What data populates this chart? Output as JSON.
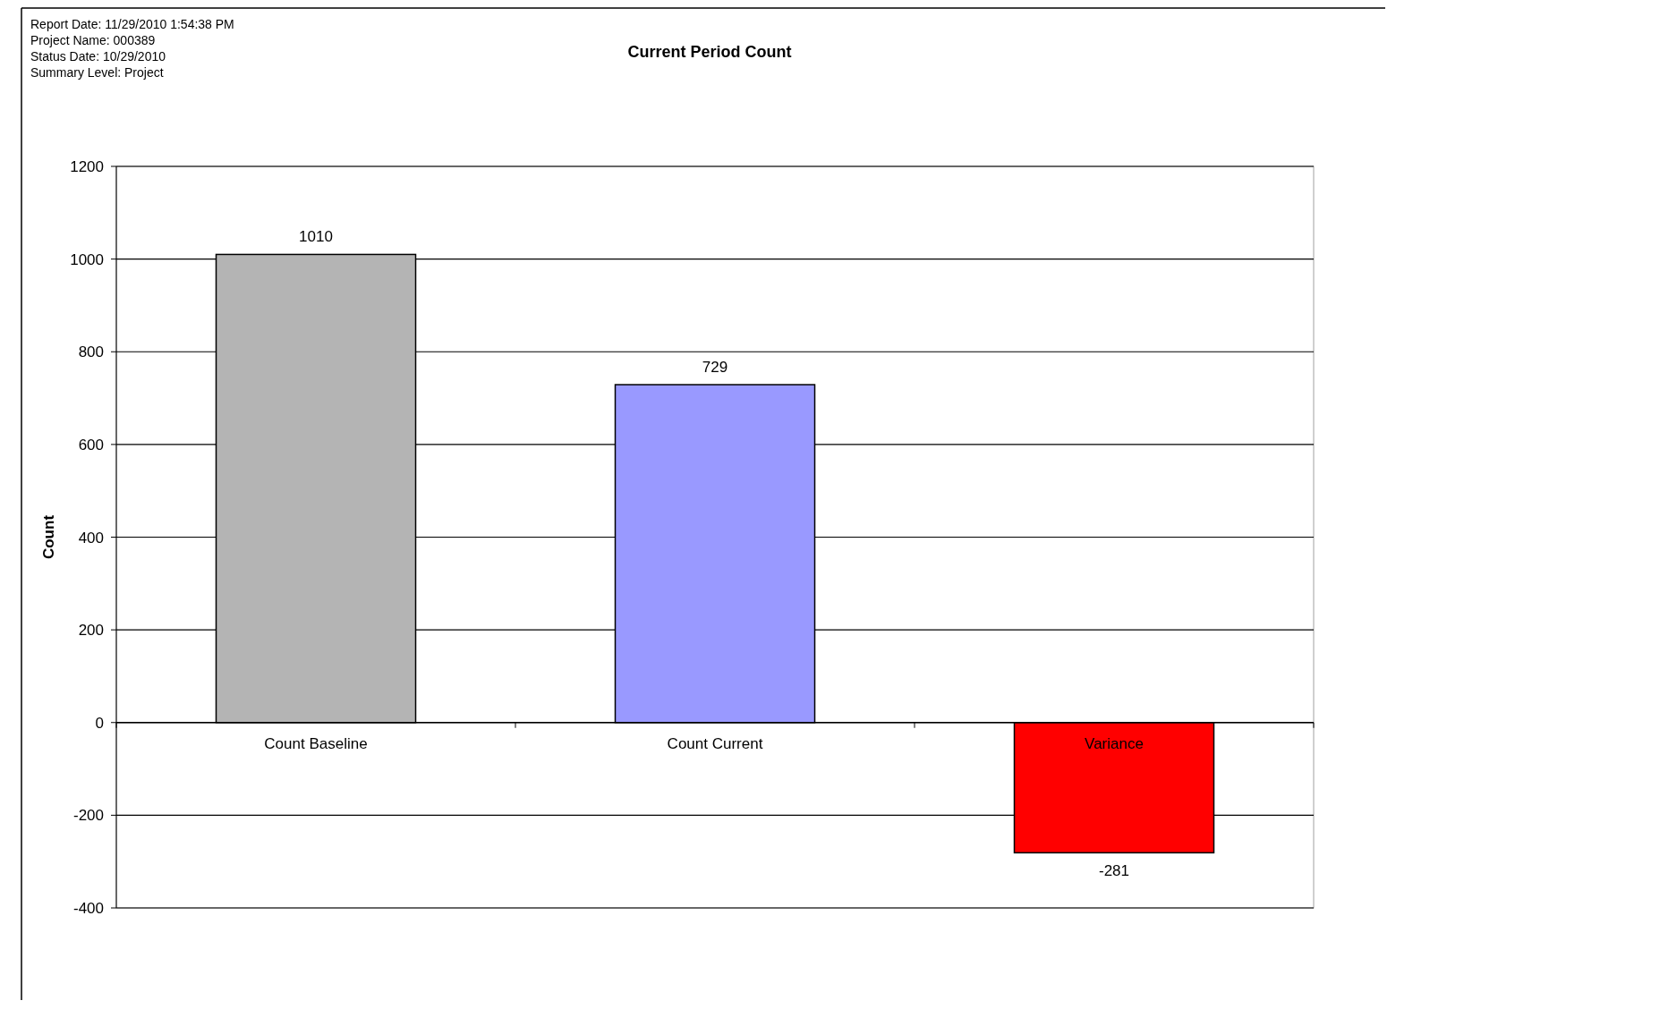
{
  "chart_data": {
    "type": "bar",
    "title": "Current Period Count",
    "ylabel": "Count",
    "annotations": [
      "Report Date:  11/29/2010   1:54:38  PM",
      "Project Name:  000389",
      "Status Date:  10/29/2010",
      "Summary Level:  Project"
    ],
    "categories": [
      "Count Baseline",
      "Count Current",
      "Variance"
    ],
    "values": [
      1010,
      729,
      -281
    ],
    "colors": [
      "#b4b4b4",
      "#9999ff",
      "#ff0000"
    ],
    "ylim": [
      -400,
      1200
    ],
    "yticks": [
      -400,
      -200,
      0,
      200,
      400,
      600,
      800,
      1000,
      1200
    ],
    "grid": "y",
    "data_labels": true
  }
}
